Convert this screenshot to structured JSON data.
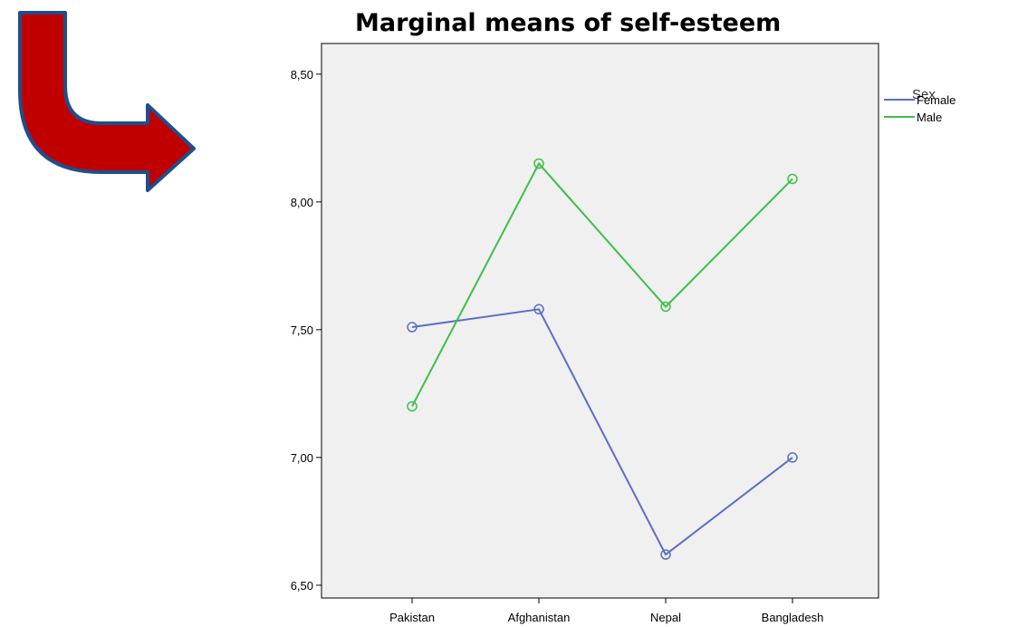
{
  "decoration": {
    "arrow_fill": "#c00000",
    "arrow_stroke": "#1f4e8c"
  },
  "chart_data": {
    "type": "line",
    "title": "Marginal means of self-esteem",
    "categories": [
      "Pakistan",
      "Afghanistan",
      "Nepal",
      "Bangladesh"
    ],
    "ylim": [
      6.45,
      8.62
    ],
    "yticks": [
      "6,50",
      "7,00",
      "7,50",
      "8,00",
      "8,50"
    ],
    "ytick_values": [
      6.5,
      7.0,
      7.5,
      8.0,
      8.5
    ],
    "legend": {
      "title": "Sex",
      "position": "top-right-outside"
    },
    "plot_background": "#f0f0f0",
    "series": [
      {
        "name": "Female",
        "color": "#5a6fc4",
        "values": [
          7.51,
          7.58,
          6.62,
          7.0
        ]
      },
      {
        "name": "Male",
        "color": "#3dbf4a",
        "values": [
          7.2,
          8.15,
          7.59,
          8.09
        ]
      }
    ]
  }
}
